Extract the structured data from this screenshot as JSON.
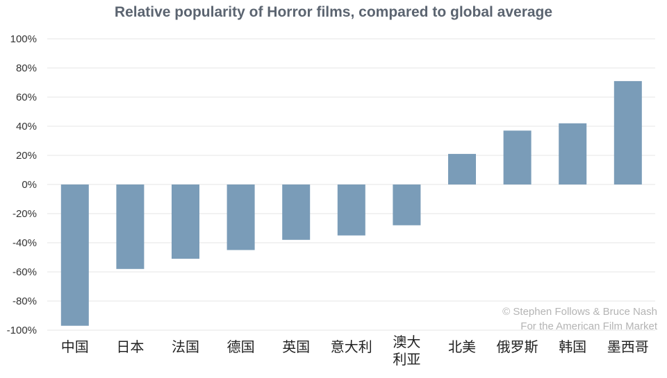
{
  "chart_data": {
    "type": "bar",
    "title": "Relative popularity of Horror films, compared to global average",
    "xlabel": "",
    "ylabel": "",
    "categories": [
      "中国",
      "日本",
      "法国",
      "德国",
      "英国",
      "意大利",
      "澳大利亚",
      "北美",
      "俄罗斯",
      "韩国",
      "墨西哥"
    ],
    "values": [
      -97,
      -58,
      -51,
      -45,
      -38,
      -35,
      -28,
      21,
      37,
      42,
      71
    ],
    "ylim": [
      -100,
      100
    ],
    "yticks": [
      "100%",
      "80%",
      "60%",
      "40%",
      "20%",
      "0%",
      "-20%",
      "-40%",
      "-60%",
      "-80%",
      "-100%"
    ],
    "grid": true,
    "legend": "none",
    "bar_color": "#7a9cb8",
    "grid_color": "#e4e4e4"
  },
  "credit": {
    "line1": "© Stephen Follows & Bruce Nash",
    "line2": "For the American Film Market"
  }
}
